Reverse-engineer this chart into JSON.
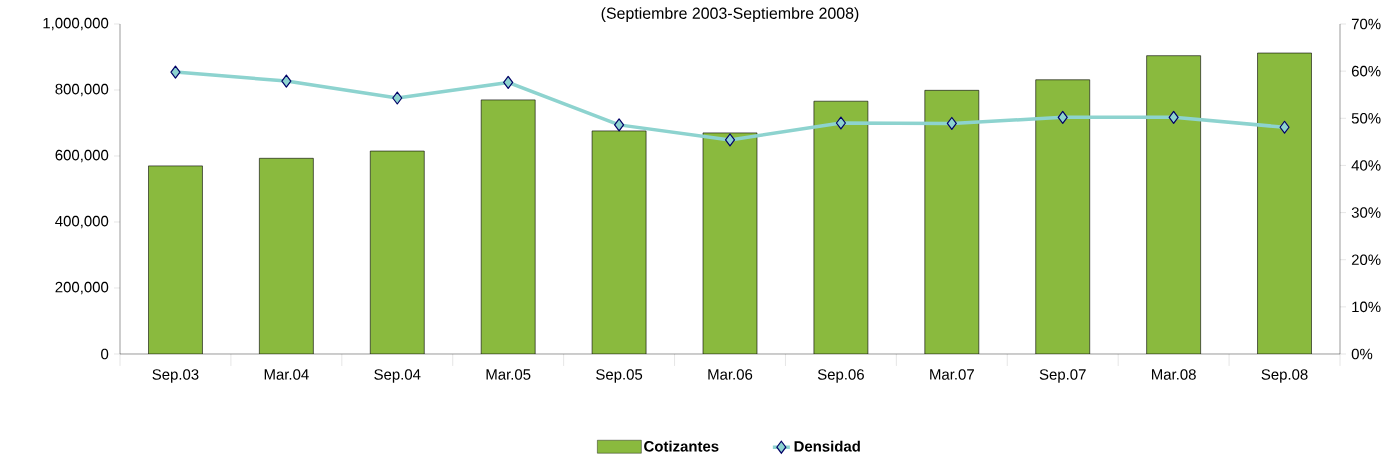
{
  "chart_data": {
    "type": "bar",
    "title": "(Septiembre 2003-Septiembre 2008)",
    "categories": [
      "Sep.03",
      "Mar.04",
      "Sep.04",
      "Mar.05",
      "Sep.05",
      "Mar.06",
      "Sep.06",
      "Mar.07",
      "Sep.07",
      "Mar.08",
      "Sep.08"
    ],
    "series": [
      {
        "name": "Cotizantes",
        "color": "#8aba3e",
        "values": [
          570000,
          593000,
          615000,
          770000,
          676000,
          670000,
          766000,
          799000,
          831000,
          904000,
          912000
        ]
      },
      {
        "name": "Densidad",
        "type": "line",
        "axis": "y2",
        "marker": "diamond",
        "color": "#8dd3cf",
        "values": [
          59.8,
          57.9,
          54.3,
          57.6,
          48.6,
          45.4,
          49.0,
          48.9,
          50.2,
          50.2,
          48.1
        ]
      }
    ],
    "ylim": [
      0,
      1000000
    ],
    "yticks": [
      {
        "value": 0,
        "label": "0"
      },
      {
        "value": 200000,
        "label": "200,000"
      },
      {
        "value": 400000,
        "label": "400,000"
      },
      {
        "value": 600000,
        "label": "600,000"
      },
      {
        "value": 800000,
        "label": "800,000"
      },
      {
        "value": 1000000,
        "label": "1,000,000"
      }
    ],
    "y2lim": [
      0,
      70
    ],
    "y2ticks": [
      {
        "value": 0,
        "label": "0%"
      },
      {
        "value": 10,
        "label": "10%"
      },
      {
        "value": 20,
        "label": "20%"
      },
      {
        "value": 30,
        "label": "30%"
      },
      {
        "value": 40,
        "label": "40%"
      },
      {
        "value": 50,
        "label": "50%"
      },
      {
        "value": 60,
        "label": "60%"
      },
      {
        "value": 70,
        "label": "70%"
      }
    ],
    "grid": false,
    "legend": "bottom"
  }
}
